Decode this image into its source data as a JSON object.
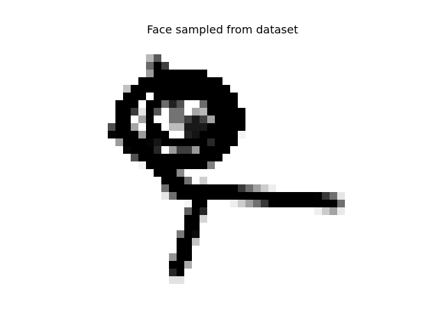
{
  "figure": {
    "title": "Face sampled from dataset"
  },
  "image": {
    "palette": {
      "ink": "#000000",
      "paper": "#ffffff"
    }
  }
}
